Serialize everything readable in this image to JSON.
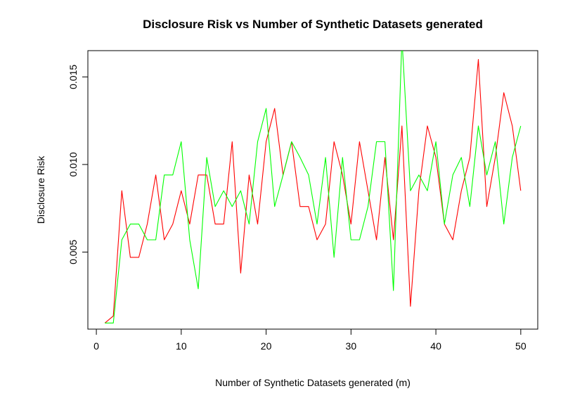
{
  "chart_data": {
    "type": "line",
    "title": "Disclosure Risk vs Number of Synthetic Datasets generated",
    "xlabel": "Number of Synthetic Datasets generated (m)",
    "ylabel": "Disclosure Risk",
    "xlim": [
      -1,
      52
    ],
    "ylim": [
      0.0006,
      0.0165
    ],
    "x_ticks": [
      0,
      10,
      20,
      30,
      40,
      50
    ],
    "y_ticks": [
      0.005,
      0.01,
      0.015
    ],
    "y_tick_labels": [
      "0.005",
      "0.010",
      "0.015"
    ],
    "x": [
      1,
      2,
      3,
      4,
      5,
      6,
      7,
      8,
      9,
      10,
      11,
      12,
      13,
      14,
      15,
      16,
      17,
      18,
      19,
      20,
      21,
      22,
      23,
      24,
      25,
      26,
      27,
      28,
      29,
      30,
      31,
      32,
      33,
      34,
      35,
      36,
      37,
      38,
      39,
      40,
      41,
      42,
      43,
      44,
      45,
      46,
      47,
      48,
      49,
      50
    ],
    "series": [
      {
        "name": "red",
        "color": "#ff0000",
        "values": [
          0.00095,
          0.00135,
          0.0085,
          0.0047,
          0.0047,
          0.0066,
          0.0094,
          0.0057,
          0.0066,
          0.0085,
          0.0066,
          0.0094,
          0.0094,
          0.0066,
          0.0066,
          0.0113,
          0.0038,
          0.0094,
          0.0066,
          0.0113,
          0.0132,
          0.0094,
          0.0113,
          0.0076,
          0.0076,
          0.0057,
          0.0066,
          0.0113,
          0.0094,
          0.0066,
          0.0113,
          0.0085,
          0.0057,
          0.0104,
          0.0057,
          0.0122,
          0.0019,
          0.0085,
          0.0122,
          0.0104,
          0.0066,
          0.0057,
          0.0085,
          0.0104,
          0.016,
          0.0076,
          0.0104,
          0.0141,
          0.0122,
          0.0085
        ]
      },
      {
        "name": "green",
        "color": "#00ff00",
        "values": [
          0.00095,
          0.00095,
          0.0057,
          0.0066,
          0.0066,
          0.0057,
          0.0057,
          0.0094,
          0.0094,
          0.0113,
          0.0057,
          0.0029,
          0.0104,
          0.0076,
          0.0085,
          0.0076,
          0.0085,
          0.0066,
          0.0113,
          0.0132,
          0.0076,
          0.0094,
          0.0113,
          0.0104,
          0.0094,
          0.0066,
          0.0104,
          0.0047,
          0.0104,
          0.0057,
          0.0057,
          0.0076,
          0.0113,
          0.0113,
          0.0028,
          0.0172,
          0.0085,
          0.0094,
          0.0085,
          0.0113,
          0.0066,
          0.0094,
          0.0104,
          0.0076,
          0.0122,
          0.0094,
          0.0113,
          0.0066,
          0.0104,
          0.0122
        ]
      }
    ]
  }
}
